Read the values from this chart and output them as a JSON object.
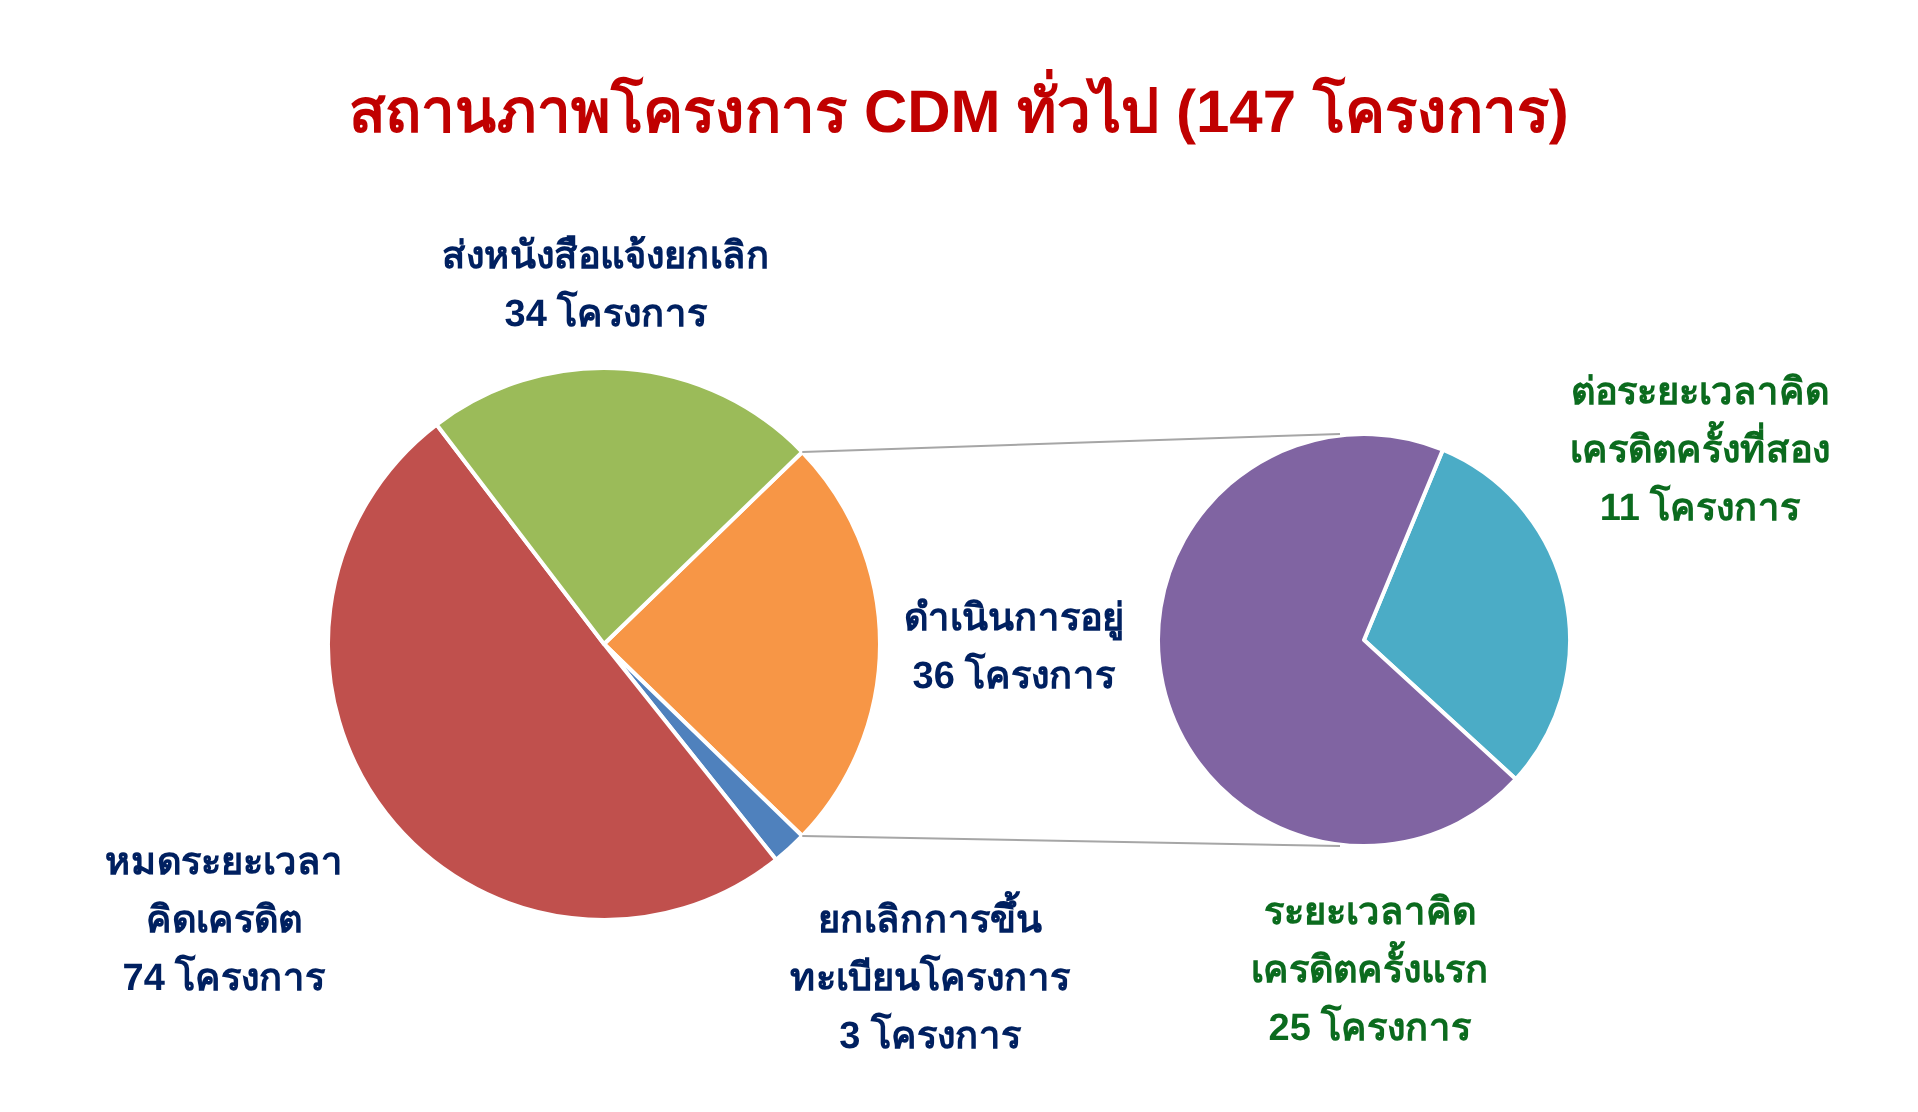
{
  "chart_data": [
    {
      "type": "pie",
      "title": "สถานภาพโครงการ CDM ทั่วไป (147 โครงการ)",
      "categories": [
        "ดำเนินการอยู่",
        "ยกเลิกการขึ้นทะเบียนโครงการ",
        "หมดระยะเวลาคิดเครดิต",
        "ส่งหนังสือแจ้งยกเลิก"
      ],
      "values": [
        36,
        3,
        74,
        34
      ],
      "colors": [
        "#f79646",
        "#4f81bd",
        "#c0504d",
        "#9bbb59"
      ],
      "value_labels": [
        "36 โครงการ",
        "3 โครงการ",
        "74 โครงการ",
        "34 โครงการ"
      ]
    },
    {
      "type": "pie",
      "categories": [
        "ต่อระยะเวลาคิดเครดิตครั้งที่สอง",
        "ระยะเวลาคิดเครดิตครั้งแรก"
      ],
      "values": [
        11,
        25
      ],
      "colors": [
        "#4bacc6",
        "#8064a2"
      ],
      "value_labels": [
        "11 โครงการ",
        "25 โครงการ"
      ]
    }
  ]
}
